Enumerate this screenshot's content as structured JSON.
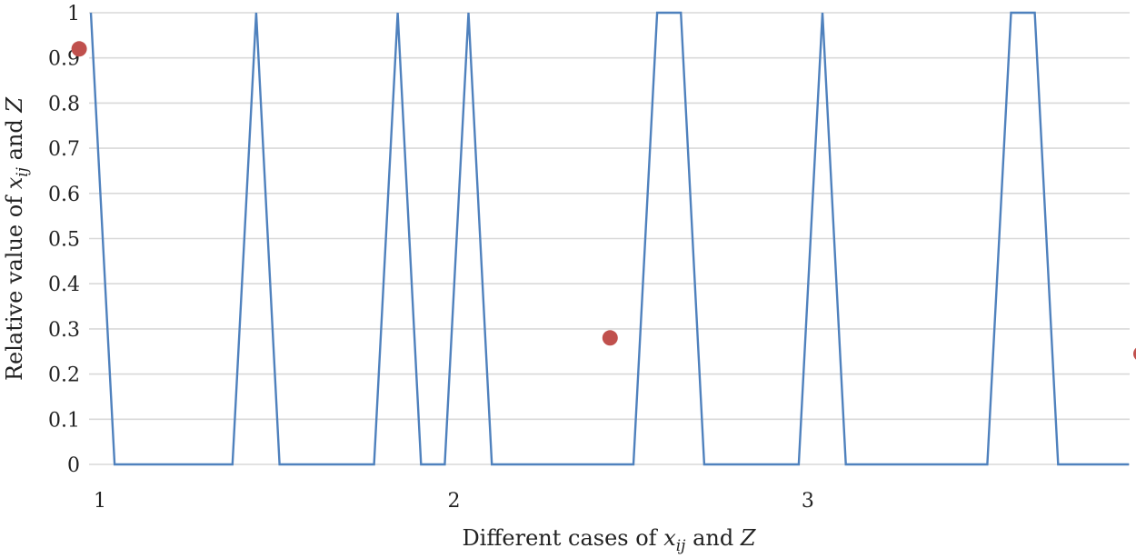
{
  "chart_data": {
    "type": "line",
    "title": "",
    "xlabel": {
      "prefix": "Different cases of ",
      "var": "x",
      "sub": "ij",
      "suffix": " and ",
      "var2": "Z"
    },
    "ylabel": {
      "prefix": "Relative value of ",
      "var": "x",
      "sub": "ij",
      "suffix": " and ",
      "var2": "Z"
    },
    "ylim": [
      0,
      1
    ],
    "xlim": [
      1,
      3.935
    ],
    "yticks": [
      0,
      0.1,
      0.2,
      0.3,
      0.4,
      0.5,
      0.6,
      0.7,
      0.8,
      0.9,
      1
    ],
    "ytick_labels": [
      "0",
      "0.1",
      "0.2",
      "0.3",
      "0.4",
      "0.5",
      "0.6",
      "0.7",
      "0.8",
      "0.9",
      "1"
    ],
    "xticks": [
      1,
      2,
      3
    ],
    "xtick_labels": [
      "1",
      "2",
      "3"
    ],
    "grid": true,
    "series": [
      {
        "kind": "line",
        "color": "#4f81bd",
        "points": [
          [
            1.0,
            1
          ],
          [
            1.067,
            0
          ],
          [
            1.4,
            0
          ],
          [
            1.467,
            1
          ],
          [
            1.533,
            0
          ],
          [
            1.8,
            0
          ],
          [
            1.867,
            1
          ],
          [
            1.933,
            0
          ],
          [
            2.0,
            0
          ],
          [
            2.067,
            1
          ],
          [
            2.133,
            0
          ],
          [
            2.533,
            0
          ],
          [
            2.6,
            1
          ],
          [
            2.667,
            1
          ],
          [
            2.733,
            0
          ],
          [
            3.0,
            0
          ],
          [
            3.067,
            1
          ],
          [
            3.133,
            0
          ],
          [
            3.533,
            0
          ],
          [
            3.6,
            1
          ],
          [
            3.667,
            1
          ],
          [
            3.733,
            0
          ],
          [
            3.933,
            0
          ]
        ]
      },
      {
        "kind": "scatter",
        "color": "#c0504d",
        "points": [
          [
            0.967,
            0.92
          ],
          [
            2.467,
            0.28
          ],
          [
            3.967,
            0.245
          ]
        ]
      }
    ]
  }
}
